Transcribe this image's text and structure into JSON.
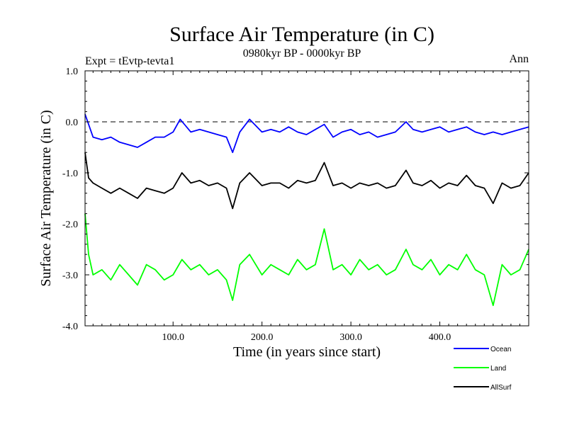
{
  "chart_data": {
    "type": "line",
    "title": "Surface Air Temperature (in C)",
    "subtitle": "0980kyr BP - 0000kyr BP",
    "expt_label": "Expt = tEvtp-tevta1",
    "season_label": "Ann",
    "xlabel": "Time (in years since start)",
    "ylabel": "Surface Air Temperature (in C)",
    "xlim": [
      1,
      500
    ],
    "ylim": [
      -4.0,
      1.0
    ],
    "x_ticks": [
      100.0,
      200.0,
      300.0,
      400.0
    ],
    "x_tick_labels": [
      "100.0",
      "200.0",
      "300.0",
      "400.0"
    ],
    "y_ticks": [
      1.0,
      0.0,
      -1.0,
      -2.0,
      -3.0,
      -4.0
    ],
    "y_tick_labels": [
      "1.0",
      "0.0",
      "-1.0",
      "-2.0",
      "-3.0",
      "-4.0"
    ],
    "reference_line": 0.0,
    "legend_position": "bottom-right, below plot",
    "series": [
      {
        "name": "Ocean",
        "color": "#0000ff",
        "x": [
          1,
          10,
          20,
          30,
          40,
          50,
          60,
          70,
          80,
          90,
          100,
          108,
          120,
          130,
          140,
          150,
          160,
          167,
          175,
          186,
          200,
          210,
          220,
          230,
          240,
          250,
          260,
          270,
          280,
          290,
          300,
          310,
          320,
          330,
          340,
          350,
          362,
          370,
          380,
          390,
          400,
          410,
          420,
          430,
          440,
          450,
          460,
          470,
          480,
          490,
          500
        ],
        "y": [
          0.15,
          -0.3,
          -0.35,
          -0.3,
          -0.4,
          -0.45,
          -0.5,
          -0.4,
          -0.3,
          -0.3,
          -0.2,
          0.05,
          -0.2,
          -0.15,
          -0.2,
          -0.25,
          -0.3,
          -0.6,
          -0.2,
          0.05,
          -0.2,
          -0.15,
          -0.2,
          -0.1,
          -0.2,
          -0.25,
          -0.15,
          -0.05,
          -0.3,
          -0.2,
          -0.15,
          -0.25,
          -0.2,
          -0.3,
          -0.25,
          -0.2,
          0.0,
          -0.15,
          -0.2,
          -0.15,
          -0.1,
          -0.2,
          -0.15,
          -0.1,
          -0.2,
          -0.25,
          -0.2,
          -0.25,
          -0.2,
          -0.15,
          -0.1
        ]
      },
      {
        "name": "Land",
        "color": "#00ff00",
        "x": [
          1,
          5,
          10,
          20,
          30,
          40,
          50,
          60,
          70,
          80,
          90,
          100,
          110,
          120,
          130,
          140,
          150,
          160,
          167,
          175,
          186,
          200,
          210,
          220,
          230,
          240,
          250,
          260,
          270,
          280,
          290,
          300,
          310,
          320,
          330,
          340,
          350,
          362,
          370,
          380,
          390,
          400,
          410,
          420,
          430,
          440,
          450,
          460,
          470,
          480,
          490,
          500
        ],
        "y": [
          -1.8,
          -2.6,
          -3.0,
          -2.9,
          -3.1,
          -2.8,
          -3.0,
          -3.2,
          -2.8,
          -2.9,
          -3.1,
          -3.0,
          -2.7,
          -2.9,
          -2.8,
          -3.0,
          -2.9,
          -3.1,
          -3.5,
          -2.8,
          -2.6,
          -3.0,
          -2.8,
          -2.9,
          -3.0,
          -2.7,
          -2.9,
          -2.8,
          -2.1,
          -2.9,
          -2.8,
          -3.0,
          -2.7,
          -2.9,
          -2.8,
          -3.0,
          -2.9,
          -2.5,
          -2.8,
          -2.9,
          -2.7,
          -3.0,
          -2.8,
          -2.9,
          -2.6,
          -2.9,
          -3.0,
          -3.6,
          -2.8,
          -3.0,
          -2.9,
          -2.5
        ]
      },
      {
        "name": "AllSurf",
        "color": "#000000",
        "x": [
          1,
          5,
          10,
          20,
          30,
          40,
          50,
          60,
          70,
          80,
          90,
          100,
          110,
          120,
          130,
          140,
          150,
          160,
          167,
          175,
          186,
          200,
          210,
          220,
          230,
          240,
          250,
          260,
          270,
          280,
          290,
          300,
          310,
          320,
          330,
          340,
          350,
          362,
          370,
          380,
          390,
          400,
          410,
          420,
          430,
          440,
          450,
          460,
          470,
          480,
          490,
          500
        ],
        "y": [
          -0.6,
          -1.1,
          -1.2,
          -1.3,
          -1.4,
          -1.3,
          -1.4,
          -1.5,
          -1.3,
          -1.35,
          -1.4,
          -1.3,
          -1.0,
          -1.2,
          -1.15,
          -1.25,
          -1.2,
          -1.3,
          -1.7,
          -1.2,
          -1.0,
          -1.25,
          -1.2,
          -1.2,
          -1.3,
          -1.15,
          -1.2,
          -1.15,
          -0.8,
          -1.25,
          -1.2,
          -1.3,
          -1.2,
          -1.25,
          -1.2,
          -1.3,
          -1.25,
          -0.95,
          -1.2,
          -1.25,
          -1.15,
          -1.3,
          -1.2,
          -1.25,
          -1.05,
          -1.25,
          -1.3,
          -1.6,
          -1.2,
          -1.3,
          -1.25,
          -1.0
        ]
      }
    ]
  }
}
